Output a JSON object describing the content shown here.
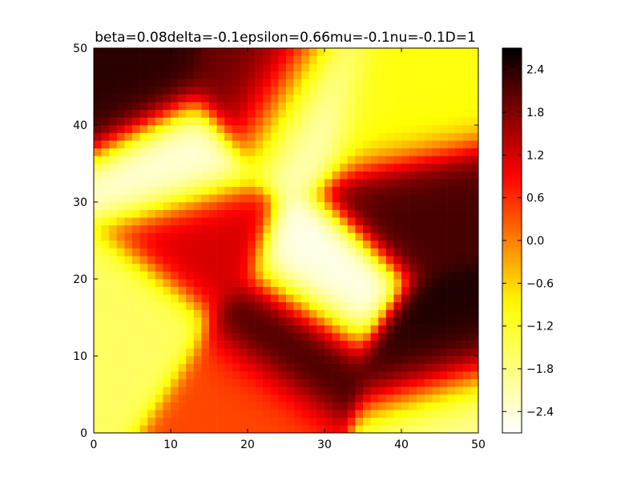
{
  "chart_data": {
    "type": "heatmap",
    "title": "beta=0.08delta=-0.1epsilon=0.66mu=-0.1nu=-0.1D=1",
    "xlabel": "",
    "ylabel": "",
    "xlim": [
      0,
      50
    ],
    "ylim": [
      0,
      50
    ],
    "grid_shape": [
      50,
      50
    ],
    "colormap": "hot_r",
    "value_range": [
      -2.7,
      2.7
    ],
    "x_ticks": [
      0,
      10,
      20,
      30,
      40,
      50
    ],
    "x_tick_labels": [
      "0",
      "10",
      "20",
      "30",
      "40",
      "50"
    ],
    "y_ticks": [
      0,
      10,
      20,
      30,
      40,
      50
    ],
    "y_tick_labels": [
      "0",
      "10",
      "20",
      "30",
      "40",
      "50"
    ],
    "colorbar": {
      "ticks": [
        2.4,
        1.8,
        1.2,
        0.6,
        0.0,
        -0.6,
        -1.2,
        -1.8,
        -2.4
      ],
      "tick_labels": [
        "2.4",
        "1.8",
        "1.2",
        "0.6",
        "0.0",
        "−0.6",
        "−1.2",
        "−1.8",
        "−2.4"
      ]
    },
    "features": [
      {
        "x": 25,
        "y": 12,
        "v": 2.4
      },
      {
        "x": 30,
        "y": 20,
        "v": -2.6
      },
      {
        "x": 22,
        "y": 45,
        "v": 2.0
      },
      {
        "x": 27,
        "y": 42,
        "v": -2.4
      },
      {
        "x": 13,
        "y": 25,
        "v": 1.2
      },
      {
        "x": 10,
        "y": 35,
        "v": -2.5
      },
      {
        "x": 40,
        "y": 30,
        "v": 2.2
      },
      {
        "x": 38,
        "y": 40,
        "v": -1.0
      },
      {
        "x": 5,
        "y": 45,
        "v": 2.4
      },
      {
        "x": 5,
        "y": 15,
        "v": -1.6
      },
      {
        "x": 45,
        "y": 10,
        "v": 2.5
      },
      {
        "x": 47,
        "y": 3,
        "v": -2.0
      },
      {
        "x": 20,
        "y": 5,
        "v": 0.4
      }
    ],
    "grid": false
  },
  "colors": {
    "colormap_stops": [
      "#ffffff",
      "#ffff00",
      "#ff0000",
      "#000000"
    ],
    "axes_edge": "#000000",
    "background": "#ffffff"
  }
}
